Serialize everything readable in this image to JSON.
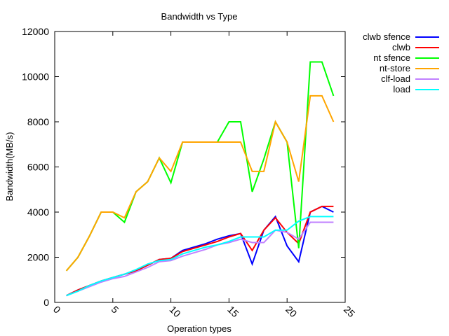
{
  "chart_data": {
    "type": "line",
    "title": "Bandwidth vs Type",
    "xlabel": "Operation types",
    "ylabel": "Bandwidth(MB/s)",
    "xlim": [
      0,
      25
    ],
    "ylim": [
      0,
      12000
    ],
    "xticks": [
      0,
      5,
      10,
      15,
      20,
      25
    ],
    "yticks": [
      0,
      2000,
      4000,
      6000,
      8000,
      10000,
      12000
    ],
    "grid": false,
    "legend_position": "top-right (outside plot)",
    "x": [
      1,
      2,
      3,
      4,
      5,
      6,
      7,
      8,
      9,
      10,
      11,
      12,
      13,
      14,
      15,
      16,
      17,
      18,
      19,
      20,
      21,
      22,
      23,
      24
    ],
    "series": [
      {
        "name": "clwb sfence",
        "color": "#0000ff",
        "values": [
          300,
          550,
          750,
          950,
          1100,
          1250,
          1400,
          1650,
          1900,
          1950,
          2300,
          2450,
          2600,
          2800,
          2950,
          3050,
          1700,
          3200,
          3800,
          2500,
          1800,
          4000,
          4250,
          4000
        ]
      },
      {
        "name": "clwb",
        "color": "#ff0000",
        "values": [
          300,
          550,
          750,
          950,
          1100,
          1250,
          1400,
          1650,
          1900,
          1950,
          2250,
          2400,
          2550,
          2700,
          2900,
          3050,
          2300,
          3200,
          3750,
          3100,
          2600,
          4000,
          4250,
          4250
        ]
      },
      {
        "name": "nt sfence",
        "color": "#00ff00",
        "values": [
          1400,
          2000,
          2950,
          4000,
          4000,
          3550,
          4900,
          5350,
          6400,
          5300,
          7100,
          7100,
          7100,
          7100,
          8000,
          8000,
          4900,
          6350,
          8000,
          7100,
          2400,
          10650,
          10650,
          9150
        ]
      },
      {
        "name": "nt-store",
        "color": "#ffa500",
        "values": [
          1400,
          2000,
          2950,
          4000,
          4000,
          3750,
          4900,
          5350,
          6400,
          5800,
          7100,
          7100,
          7100,
          7100,
          7100,
          7100,
          5800,
          5800,
          8000,
          7100,
          5350,
          9150,
          9150,
          8000
        ]
      },
      {
        "name": "clf-load",
        "color": "#c080ff",
        "values": [
          300,
          500,
          700,
          900,
          1050,
          1150,
          1350,
          1550,
          1800,
          1850,
          2050,
          2200,
          2350,
          2550,
          2650,
          2800,
          2650,
          2650,
          3200,
          3100,
          2800,
          3550,
          3550,
          3550
        ]
      },
      {
        "name": "load",
        "color": "#00ffff",
        "values": [
          300,
          500,
          750,
          950,
          1100,
          1250,
          1450,
          1700,
          1850,
          1900,
          2150,
          2300,
          2450,
          2550,
          2700,
          2900,
          2900,
          2900,
          3200,
          3200,
          3600,
          3800,
          3800,
          3800
        ]
      }
    ]
  }
}
